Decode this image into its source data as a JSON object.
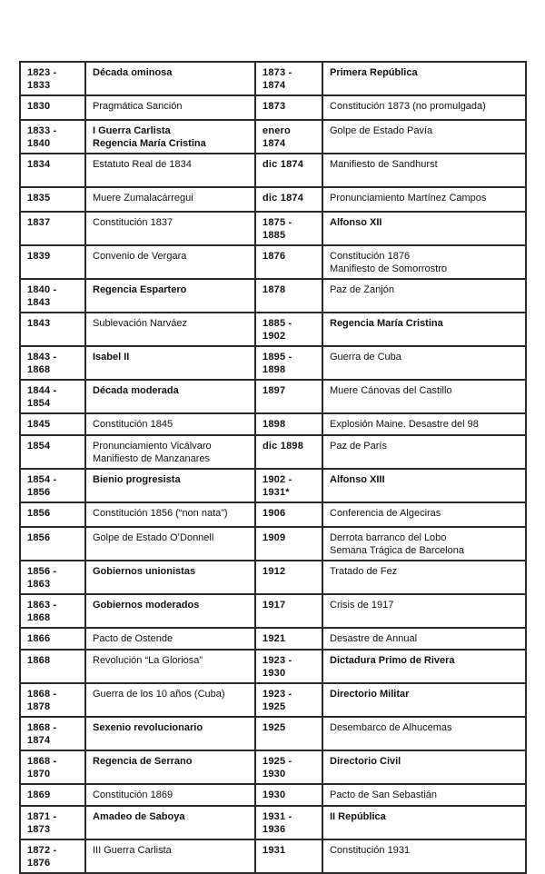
{
  "page": {
    "background_color": "#ffffff",
    "text_color": "#111111",
    "border_color": "#2a2a2a",
    "description": "Cronología de la historia de España 1823-1936"
  },
  "table": {
    "columns": [
      "date",
      "event",
      "date",
      "event"
    ],
    "rows": [
      {
        "left": {
          "date": "1823 - 1833",
          "event": "Década ominosa",
          "bold": true
        },
        "right": {
          "date": "1873 - 1874",
          "event": "Primera República",
          "bold": true
        }
      },
      {
        "left": {
          "date": "1830",
          "event": "Pragmática Sanción",
          "bold": false
        },
        "right": {
          "date": "1873",
          "event": "Constitución 1873 (no promulgada)",
          "bold": false
        }
      },
      {
        "left": {
          "date": "1833 - 1840",
          "event": "I Guerra Carlista\nRegencia María Cristina",
          "bold": true
        },
        "right": {
          "date": "enero 1874",
          "event": "Golpe de Estado Pavía",
          "bold": false
        }
      },
      {
        "left": {
          "date": "1834",
          "event": "Estatuto Real de 1834",
          "bold": false
        },
        "right": {
          "date": "dic 1874",
          "event": "Manifiesto de Sandhurst",
          "bold": false
        }
      },
      {
        "left": {
          "date": "1835",
          "event": "Muere Zumalacárregui",
          "bold": false
        },
        "right": {
          "date": "dic 1874",
          "event": "Pronunciamiento Martínez Campos",
          "bold": false
        }
      },
      {
        "left": {
          "date": "1837",
          "event": "Constitución 1837",
          "bold": false
        },
        "right": {
          "date": "1875 - 1885",
          "event": "Alfonso XII",
          "bold": true
        }
      },
      {
        "left": {
          "date": "1839",
          "event": "Convenio de Vergara",
          "bold": false
        },
        "right": {
          "date": "1876",
          "event": "Constitución 1876\nManifiesto de Somorrostro",
          "bold": false
        }
      },
      {
        "left": {
          "date": "1840 - 1843",
          "event": "Regencia Espartero",
          "bold": true
        },
        "right": {
          "date": "1878",
          "event": "Paz de Zanjón",
          "bold": false
        }
      },
      {
        "left": {
          "date": "1843",
          "event": "Sublevación Narváez",
          "bold": false
        },
        "right": {
          "date": "1885 - 1902",
          "event": "Regencia María Cristina",
          "bold": true
        }
      },
      {
        "left": {
          "date": "1843 - 1868",
          "event": "Isabel II",
          "bold": true
        },
        "right": {
          "date": "1895 - 1898",
          "event": "Guerra de Cuba",
          "bold": false
        }
      },
      {
        "left": {
          "date": "1844 - 1854",
          "event": "Década moderada",
          "bold": true
        },
        "right": {
          "date": "1897",
          "event": "Muere Cánovas del Castillo",
          "bold": false
        }
      },
      {
        "left": {
          "date": "1845",
          "event": "Constitución 1845",
          "bold": false
        },
        "right": {
          "date": "1898",
          "event": "Explosión Maine. Desastre del 98",
          "bold": false
        }
      },
      {
        "left": {
          "date": "1854",
          "event": "Pronunciamiento Vicálvaro\nManifiesto de Manzanares",
          "bold": false
        },
        "right": {
          "date": "dic 1898",
          "event": "Paz de París",
          "bold": false
        }
      },
      {
        "left": {
          "date": "1854 - 1856",
          "event": "Bienio progresista",
          "bold": true
        },
        "right": {
          "date": "1902 - 1931*",
          "event": "Alfonso XIII",
          "bold": true
        }
      },
      {
        "left": {
          "date": "1856",
          "event": "Constitución 1856 (“non nata”)",
          "bold": false
        },
        "right": {
          "date": "1906",
          "event": "Conferencia de Algeciras",
          "bold": false
        }
      },
      {
        "left": {
          "date": "1856",
          "event": "Golpe de Estado O’Donnell",
          "bold": false
        },
        "right": {
          "date": "1909",
          "event": "Derrota barranco del Lobo\nSemana Trágica de Barcelona",
          "bold": false
        }
      },
      {
        "left": {
          "date": "1856 - 1863",
          "event": "Gobiernos unionistas",
          "bold": true
        },
        "right": {
          "date": "1912",
          "event": "Tratado de Fez",
          "bold": false
        }
      },
      {
        "left": {
          "date": "1863 - 1868",
          "event": "Gobiernos moderados",
          "bold": true
        },
        "right": {
          "date": "1917",
          "event": "Crisis de 1917",
          "bold": false
        }
      },
      {
        "left": {
          "date": "1866",
          "event": "Pacto de Ostende",
          "bold": false
        },
        "right": {
          "date": "1921",
          "event": "Desastre de Annual",
          "bold": false
        }
      },
      {
        "left": {
          "date": "1868",
          "event": "Revolución “La Gloriosa”",
          "bold": false
        },
        "right": {
          "date": "1923 - 1930",
          "event": "Dictadura Primo de Rivera",
          "bold": true
        }
      },
      {
        "left": {
          "date": "1868 - 1878",
          "event": "Guerra de los 10 años (Cuba)",
          "bold": false
        },
        "right": {
          "date": "1923 - 1925",
          "event": "Directorio Militar",
          "bold": true
        }
      },
      {
        "left": {
          "date": "1868 - 1874",
          "event": "Sexenio revolucionario",
          "bold": true
        },
        "right": {
          "date": "1925",
          "event": "Desembarco de Alhucemas",
          "bold": false
        }
      },
      {
        "left": {
          "date": "1868 - 1870",
          "event": "Regencia de Serrano",
          "bold": true
        },
        "right": {
          "date": "1925 - 1930",
          "event": "Directorio Civil",
          "bold": true
        }
      },
      {
        "left": {
          "date": "1869",
          "event": "Constitución 1869",
          "bold": false
        },
        "right": {
          "date": "1930",
          "event": "Pacto de San Sebastián",
          "bold": false
        }
      },
      {
        "left": {
          "date": "1871 - 1873",
          "event": "Amadeo de Saboya",
          "bold": true
        },
        "right": {
          "date": "1931 - 1936",
          "event": "II República",
          "bold": true
        }
      },
      {
        "left": {
          "date": "1872 - 1876",
          "event": "III Guerra Carlista",
          "bold": false
        },
        "right": {
          "date": "1931",
          "event": "Constitución 1931",
          "bold": false
        }
      }
    ]
  }
}
